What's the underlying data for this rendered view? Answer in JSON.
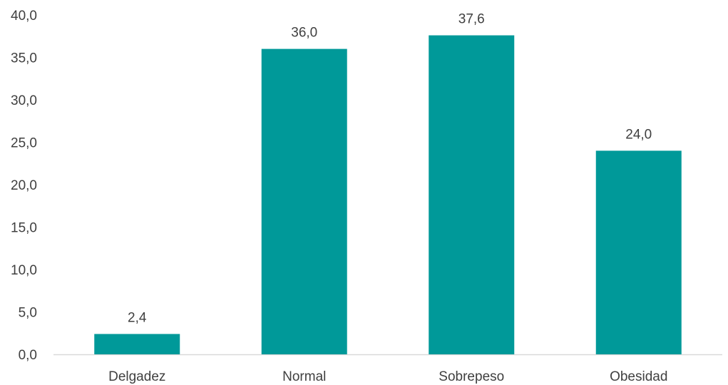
{
  "chart_data": {
    "type": "bar",
    "title": "",
    "xlabel": "",
    "ylabel": "",
    "categories": [
      "Delgadez",
      "Normal",
      "Sobrepeso",
      "Obesidad"
    ],
    "values": [
      2.4,
      36.0,
      37.6,
      24.0
    ],
    "value_labels": [
      "2,4",
      "36,0",
      "37,6",
      "24,0"
    ],
    "ylim": [
      0,
      40
    ],
    "yticks": [
      0,
      5,
      10,
      15,
      20,
      25,
      30,
      35,
      40
    ],
    "ytick_labels": [
      "0,0",
      "5,0",
      "10,0",
      "15,0",
      "20,0",
      "25,0",
      "30,0",
      "35,0",
      "40,0"
    ],
    "grid": false,
    "legend": "none",
    "colors": {
      "bar": "#009999",
      "axis": "#d9d9d9",
      "text": "#3f3f3f"
    }
  }
}
